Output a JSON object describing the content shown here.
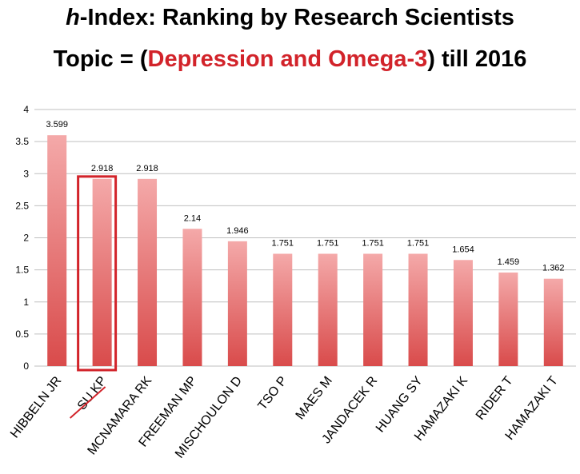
{
  "title": {
    "line1_prefix": "h",
    "line1_rest": "-Index: Ranking by Research Scientists",
    "line2_prefix": "Topic = (",
    "line2_highlight": "Depression and Omega-3",
    "line2_suffix": ") till 2016"
  },
  "colors": {
    "bar_top": "#f4a9a9",
    "bar_bottom": "#d94b4b",
    "highlight": "#d2232a",
    "highlight_text": "#d2232a",
    "grid": "#bfbfbf"
  },
  "highlighted_category": "SU KP",
  "chart_data": {
    "type": "bar",
    "categories": [
      "HIBBELN JR",
      "SU KP",
      "MCNAMARA RK",
      "FREEMAN MP",
      "MISCHOULON D",
      "TSO P",
      "MAES M",
      "JANDACEK R",
      "HUANG SY",
      "HAMAZAKI K",
      "RIDER T",
      "HAMAZAKI T"
    ],
    "values": [
      3.599,
      2.918,
      2.918,
      2.14,
      1.946,
      1.751,
      1.751,
      1.751,
      1.751,
      1.654,
      1.459,
      1.362
    ],
    "value_labels": [
      "3.599",
      "2.918",
      "2.918",
      "2.14",
      "1.946",
      "1.751",
      "1.751",
      "1.751",
      "1.751",
      "1.654",
      "1.459",
      "1.362"
    ],
    "y_ticks": [
      "0",
      "0.5",
      "1",
      "1.5",
      "2",
      "2.5",
      "3",
      "3.5",
      "4"
    ],
    "ylim": [
      0,
      4
    ],
    "grid": true,
    "legend": "none"
  }
}
